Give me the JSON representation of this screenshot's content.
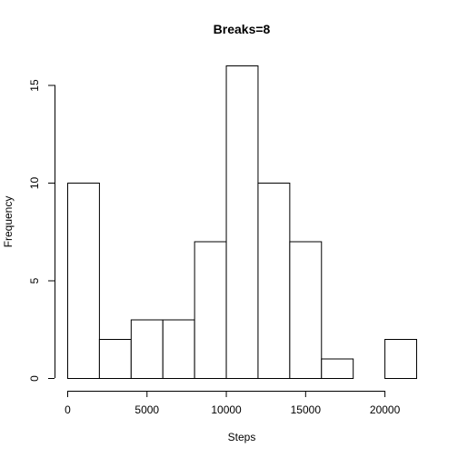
{
  "chart_data": {
    "type": "bar",
    "title": "Breaks=8",
    "xlabel": "Steps",
    "ylabel": "Frequency",
    "bin_edges": [
      0,
      2000,
      4000,
      6000,
      8000,
      10000,
      12000,
      14000,
      16000,
      18000,
      20000,
      22000
    ],
    "values": [
      10,
      2,
      3,
      3,
      7,
      16,
      10,
      7,
      1,
      0,
      2
    ],
    "xlim": [
      0,
      22000
    ],
    "ylim": [
      0,
      16
    ],
    "x_ticks": [
      0,
      5000,
      10000,
      15000,
      20000
    ],
    "x_tick_labels": [
      "0",
      "5000",
      "10000",
      "15000",
      "20000"
    ],
    "y_ticks": [
      0,
      5,
      10,
      15
    ],
    "y_tick_labels": [
      "0",
      "5",
      "10",
      "15"
    ],
    "grid": false,
    "legend": "none",
    "colors": {
      "bar_fill": "#ffffff",
      "bar_stroke": "#000000"
    }
  }
}
